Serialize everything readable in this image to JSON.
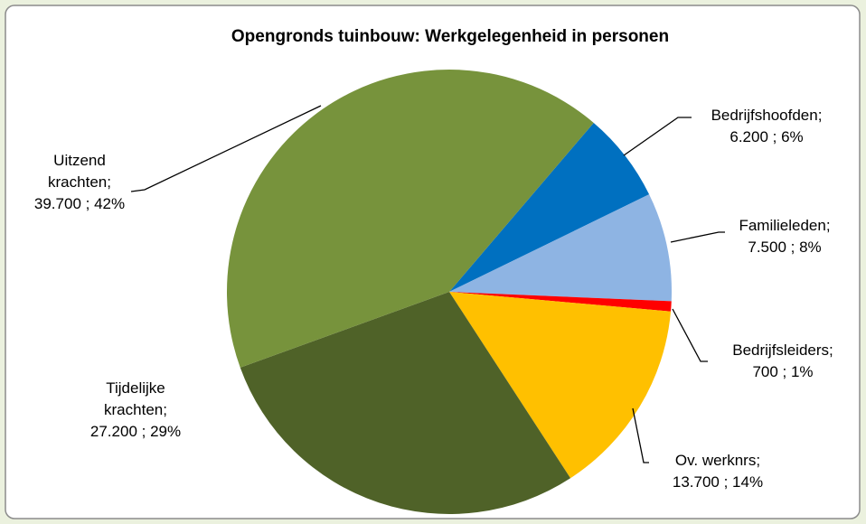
{
  "chart_data": {
    "type": "pie",
    "title": "Opengronds tuinbouw: Werkgelegenheid in personen",
    "categories": [
      "Bedrijfshoofden;",
      "Familieleden;",
      "Bedrijfsleiders;",
      "Ov. werknrs;",
      "Tijdelijke krachten;",
      "Uitzend krachten;"
    ],
    "values": [
      6200,
      7500,
      700,
      13700,
      27200,
      39700
    ],
    "value_labels": [
      "6.200 ; 6%",
      "7.500 ; 8%",
      "700 ; 1%",
      "13.700 ; 14%",
      "27.200 ; 29%",
      "39.700 ; 42%"
    ],
    "colors": [
      "#0070c0",
      "#8eb4e3",
      "#ff0000",
      "#ffc000",
      "#4f6228",
      "#77933c"
    ]
  }
}
